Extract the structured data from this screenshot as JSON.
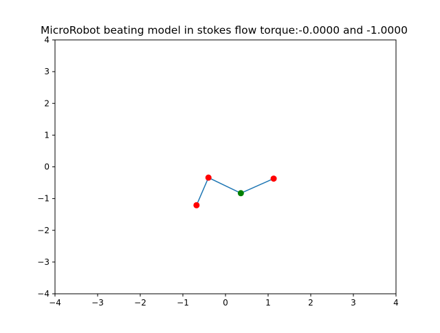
{
  "chart_data": {
    "type": "line",
    "title": "MicroRobot beating model in stokes flow torque:-0.0000 and -1.0000",
    "xlabel": "",
    "ylabel": "",
    "xlim": [
      -4,
      4
    ],
    "ylim": [
      -4,
      4
    ],
    "xticks": [
      -4,
      -3,
      -2,
      -1,
      0,
      1,
      2,
      3,
      4
    ],
    "yticks": [
      -4,
      -3,
      -2,
      -1,
      0,
      1,
      2,
      3,
      4
    ],
    "xtick_labels": [
      "−4",
      "−3",
      "−2",
      "−1",
      "0",
      "1",
      "2",
      "3",
      "4"
    ],
    "ytick_labels": [
      "−4",
      "−3",
      "−2",
      "−1",
      "0",
      "1",
      "2",
      "3",
      "4"
    ],
    "grid": false,
    "series": [
      {
        "kind": "line",
        "color": "#1f77b4",
        "x": [
          -0.68,
          -0.4,
          0.36,
          1.13
        ],
        "y": [
          -1.21,
          -0.34,
          -0.83,
          -0.37
        ]
      },
      {
        "kind": "markers",
        "color": "#ff0000",
        "x": [
          -0.68,
          -0.4,
          1.13
        ],
        "y": [
          -1.21,
          -0.34,
          -0.37
        ]
      },
      {
        "kind": "markers",
        "color": "#008000",
        "x": [
          0.36
        ],
        "y": [
          -0.83
        ]
      }
    ]
  }
}
